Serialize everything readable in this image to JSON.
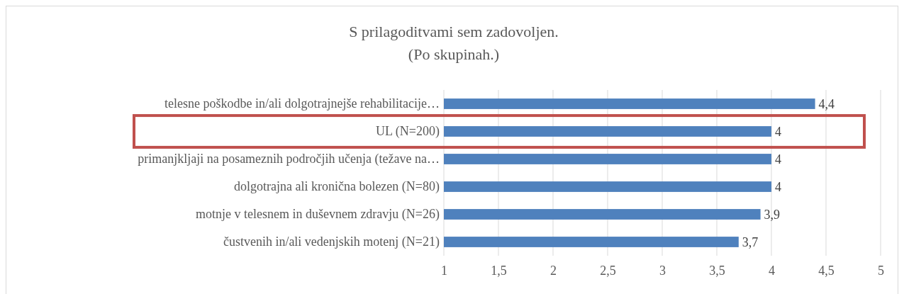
{
  "chart_data": {
    "type": "bar",
    "orientation": "horizontal",
    "title": "S prilagoditvami sem zadovoljen.",
    "subtitle": "(Po skupinah.)",
    "categories": [
      "telesne poškodbe in/ali dolgotrajnejše rehabilitacije…",
      "UL (N=200)",
      "primanjkljaji na posameznih področjih učenja (težave na…",
      "dolgotrajna ali kronična bolezen (N=80)",
      "motnje v telesnem in duševnem zdravju (N=26)",
      "čustvenih in/ali vedenjskih motenj (N=21)"
    ],
    "values": [
      4.4,
      4,
      4,
      4,
      3.9,
      3.7
    ],
    "value_labels": [
      "4,4",
      "4",
      "4",
      "4",
      "3,9",
      "3,7"
    ],
    "color": "#4f81bd",
    "xlim": [
      1,
      5
    ],
    "xticks": [
      1,
      {
        "value": 1.5,
        "label": "1,5"
      },
      2,
      {
        "value": 2.5,
        "label": "2,5"
      },
      3,
      {
        "value": 3.5,
        "label": "3,5"
      },
      4,
      {
        "value": 4.5,
        "label": "4,5"
      },
      5
    ],
    "grid": "x"
  }
}
